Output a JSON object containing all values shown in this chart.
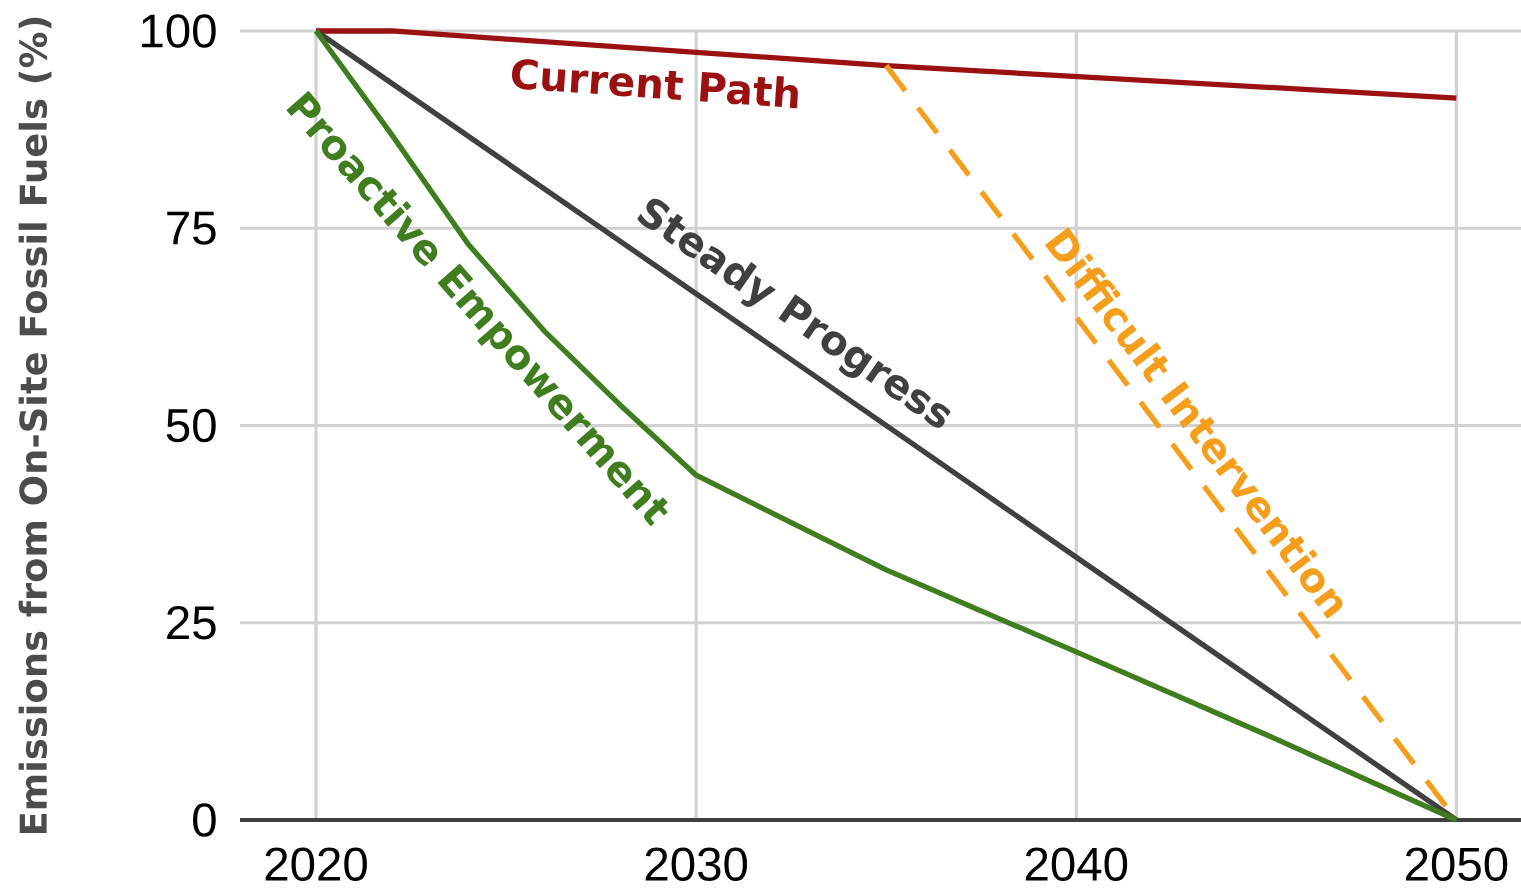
{
  "chart_data": {
    "type": "line",
    "ylabel": "Emissions from On-Site Fossil Fuels (%)",
    "xlim": [
      2018,
      2051.7
    ],
    "ylim": [
      0,
      100
    ],
    "xticks": [
      2020,
      2030,
      2040,
      2050
    ],
    "yticks": [
      0,
      25,
      50,
      75,
      100
    ],
    "grid": true,
    "series": [
      {
        "name": "Current Path",
        "color": "#9b1010",
        "x": [
          2020,
          2022,
          2035,
          2050
        ],
        "values": [
          100,
          100,
          95.6,
          91.5
        ]
      },
      {
        "name": "Steady Progress",
        "color": "#404040",
        "x": [
          2020,
          2030,
          2040,
          2050
        ],
        "values": [
          100,
          66.7,
          33.3,
          0
        ]
      },
      {
        "name": "Proactive Empowerment",
        "color": "#3f7d1e",
        "x": [
          2020,
          2022,
          2024,
          2026,
          2028,
          2030,
          2035,
          2040,
          2045,
          2050
        ],
        "values": [
          100,
          86.8,
          73,
          62,
          52.6,
          43.7,
          31.7,
          21.3,
          10.8,
          0
        ]
      },
      {
        "name": "Difficult Intervention",
        "color": "#f59e1b",
        "line_style": "dashed",
        "x": [
          2035,
          2050
        ],
        "values": [
          95.6,
          0
        ]
      }
    ]
  }
}
